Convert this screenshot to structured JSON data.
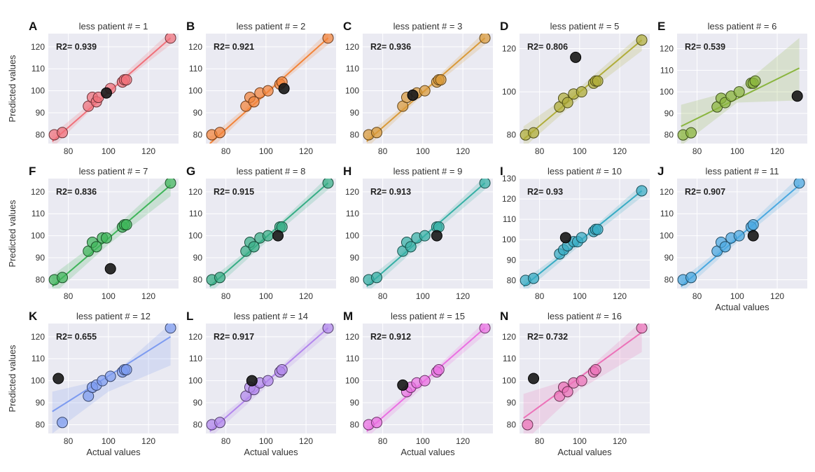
{
  "figure": {
    "x_axis_label": "Actual values",
    "y_axis_label": "Predicted values",
    "r2_prefix": "R2= ",
    "held_out_color": "#1c1c1c"
  },
  "chart_data": [
    {
      "type": "scatter",
      "letter": "A",
      "title": "less patient # = 1",
      "r2": "0.939",
      "color": "#f0707a",
      "xlim": [
        70,
        135
      ],
      "ylim": [
        76,
        126
      ],
      "xticks": [
        80,
        100,
        120
      ],
      "yticks": [
        80,
        90,
        100,
        110,
        120
      ],
      "fit": [
        [
          72,
          77
        ],
        [
          131,
          124
        ]
      ],
      "band": [
        [
          72,
          74,
          80
        ],
        [
          100,
          99,
          101
        ],
        [
          131,
          121,
          127
        ]
      ],
      "held_out": [
        [
          99,
          99
        ]
      ],
      "x": [
        73,
        77,
        90,
        92,
        94,
        95,
        101,
        107,
        108,
        109,
        131
      ],
      "y": [
        80,
        81,
        93,
        97,
        95,
        97,
        101,
        104,
        105,
        105,
        124
      ],
      "show_ylabel": true,
      "show_xlabel": false
    },
    {
      "type": "scatter",
      "letter": "B",
      "title": "less patient # = 2",
      "r2": "0.921",
      "color": "#f2843a",
      "xlim": [
        70,
        135
      ],
      "ylim": [
        76,
        126
      ],
      "xticks": [
        80,
        100,
        120
      ],
      "yticks": [
        80,
        90,
        100,
        110,
        120
      ],
      "fit": [
        [
          72,
          76
        ],
        [
          131,
          124
        ]
      ],
      "band": [
        [
          72,
          73,
          79
        ],
        [
          100,
          98,
          100
        ],
        [
          131,
          121,
          127
        ]
      ],
      "held_out": [
        [
          109,
          101
        ]
      ],
      "x": [
        73,
        77,
        90,
        92,
        94,
        97,
        101,
        107,
        108,
        131
      ],
      "y": [
        80,
        81,
        93,
        97,
        95,
        99,
        100,
        103,
        104,
        124
      ],
      "show_ylabel": false,
      "show_xlabel": false
    },
    {
      "type": "scatter",
      "letter": "C",
      "title": "less patient # = 3",
      "r2": "0.936",
      "color": "#d99a3a",
      "xlim": [
        70,
        135
      ],
      "ylim": [
        76,
        126
      ],
      "xticks": [
        80,
        100,
        120
      ],
      "yticks": [
        80,
        90,
        100,
        110,
        120
      ],
      "fit": [
        [
          72,
          77
        ],
        [
          131,
          124
        ]
      ],
      "band": [
        [
          72,
          74,
          80
        ],
        [
          100,
          98,
          100
        ],
        [
          131,
          121,
          127
        ]
      ],
      "held_out": [
        [
          95,
          98
        ]
      ],
      "x": [
        73,
        77,
        90,
        92,
        97,
        101,
        107,
        108,
        109,
        131
      ],
      "y": [
        80,
        81,
        93,
        97,
        99,
        100,
        104,
        105,
        105,
        124
      ],
      "show_ylabel": false,
      "show_xlabel": false
    },
    {
      "type": "scatter",
      "letter": "D",
      "title": "less patient # = 5",
      "r2": "0.806",
      "color": "#b0ad3a",
      "xlim": [
        70,
        135
      ],
      "ylim": [
        76,
        127
      ],
      "xticks": [
        80,
        100,
        120
      ],
      "yticks": [
        80,
        100,
        120
      ],
      "fit": [
        [
          72,
          78
        ],
        [
          131,
          124
        ]
      ],
      "band": [
        [
          72,
          74,
          84
        ],
        [
          100,
          97,
          102
        ],
        [
          131,
          119,
          127
        ]
      ],
      "held_out": [
        [
          98,
          116
        ]
      ],
      "x": [
        73,
        77,
        90,
        92,
        94,
        97,
        101,
        107,
        108,
        109,
        131
      ],
      "y": [
        80,
        81,
        93,
        97,
        95,
        99,
        100,
        104,
        105,
        105,
        124
      ],
      "show_ylabel": false,
      "show_xlabel": false
    },
    {
      "type": "scatter",
      "letter": "E",
      "title": "less patient # = 6",
      "r2": "0.539",
      "color": "#8ab53f",
      "xlim": [
        70,
        135
      ],
      "ylim": [
        76,
        127
      ],
      "xticks": [
        80,
        100,
        120
      ],
      "yticks": [
        80,
        90,
        100,
        110,
        120
      ],
      "fit": [
        [
          72,
          84
        ],
        [
          131,
          111
        ]
      ],
      "band": [
        [
          72,
          75,
          94
        ],
        [
          100,
          95,
          101
        ],
        [
          131,
          96,
          125
        ]
      ],
      "held_out": [
        [
          130,
          98
        ]
      ],
      "x": [
        73,
        77,
        90,
        92,
        94,
        97,
        101,
        107,
        108,
        109
      ],
      "y": [
        80,
        81,
        93,
        97,
        95,
        98,
        100,
        104,
        104,
        105
      ],
      "show_ylabel": false,
      "show_xlabel": false
    },
    {
      "type": "scatter",
      "letter": "F",
      "title": "less patient # = 7",
      "r2": "0.836",
      "color": "#3fb55a",
      "xlim": [
        70,
        135
      ],
      "ylim": [
        76,
        126
      ],
      "xticks": [
        80,
        100,
        120
      ],
      "yticks": [
        80,
        90,
        100,
        110,
        120
      ],
      "fit": [
        [
          72,
          77
        ],
        [
          131,
          123
        ]
      ],
      "band": [
        [
          72,
          73,
          82
        ],
        [
          100,
          96,
          101
        ],
        [
          131,
          118,
          127
        ]
      ],
      "held_out": [
        [
          101,
          85
        ]
      ],
      "x": [
        73,
        77,
        90,
        92,
        94,
        97,
        99,
        107,
        108,
        109,
        131
      ],
      "y": [
        80,
        81,
        93,
        97,
        95,
        99,
        99,
        104,
        105,
        105,
        124
      ],
      "show_ylabel": true,
      "show_xlabel": false
    },
    {
      "type": "scatter",
      "letter": "G",
      "title": "less patient # = 8",
      "r2": "0.915",
      "color": "#36ad85",
      "xlim": [
        70,
        135
      ],
      "ylim": [
        76,
        126
      ],
      "xticks": [
        80,
        100,
        120
      ],
      "yticks": [
        80,
        90,
        100,
        110,
        120
      ],
      "fit": [
        [
          72,
          77
        ],
        [
          131,
          124
        ]
      ],
      "band": [
        [
          72,
          74,
          80
        ],
        [
          100,
          97,
          100
        ],
        [
          131,
          121,
          127
        ]
      ],
      "held_out": [
        [
          106,
          100
        ]
      ],
      "x": [
        73,
        77,
        90,
        92,
        94,
        97,
        101,
        107,
        108,
        131
      ],
      "y": [
        80,
        81,
        93,
        97,
        95,
        99,
        100,
        104,
        104,
        124
      ],
      "show_ylabel": false,
      "show_xlabel": false
    },
    {
      "type": "scatter",
      "letter": "H",
      "title": "less patient # = 9",
      "r2": "0.913",
      "color": "#36b0a5",
      "xlim": [
        70,
        135
      ],
      "ylim": [
        76,
        126
      ],
      "xticks": [
        80,
        100,
        120
      ],
      "yticks": [
        80,
        90,
        100,
        110,
        120
      ],
      "fit": [
        [
          72,
          77
        ],
        [
          131,
          124
        ]
      ],
      "band": [
        [
          72,
          74,
          80
        ],
        [
          100,
          97,
          100
        ],
        [
          131,
          121,
          127
        ]
      ],
      "held_out": [
        [
          107,
          100
        ]
      ],
      "x": [
        73,
        77,
        90,
        92,
        94,
        97,
        101,
        107,
        108,
        131
      ],
      "y": [
        80,
        81,
        93,
        97,
        95,
        99,
        100,
        104,
        104,
        124
      ],
      "show_ylabel": false,
      "show_xlabel": false
    },
    {
      "type": "scatter",
      "letter": "I",
      "title": "less patient # = 10",
      "r2": "0.93",
      "color": "#38acc4",
      "xlim": [
        70,
        135
      ],
      "ylim": [
        76,
        130
      ],
      "xticks": [
        80,
        100,
        120
      ],
      "yticks": [
        80,
        90,
        100,
        110,
        120,
        130
      ],
      "fit": [
        [
          72,
          77
        ],
        [
          131,
          124
        ]
      ],
      "band": [
        [
          72,
          74,
          80
        ],
        [
          100,
          97,
          100
        ],
        [
          131,
          121,
          127
        ]
      ],
      "held_out": [
        [
          93,
          101
        ]
      ],
      "x": [
        73,
        77,
        90,
        92,
        94,
        97,
        99,
        101,
        107,
        108,
        109,
        131
      ],
      "y": [
        80,
        81,
        93,
        95,
        97,
        99,
        99,
        101,
        104,
        105,
        105,
        124
      ],
      "show_ylabel": false,
      "show_xlabel": false
    },
    {
      "type": "scatter",
      "letter": "J",
      "title": "less patient # = 11",
      "r2": "0.907",
      "color": "#4aa8e0",
      "xlim": [
        70,
        135
      ],
      "ylim": [
        76,
        126
      ],
      "xticks": [
        80,
        100,
        120
      ],
      "yticks": [
        80,
        90,
        100,
        110,
        120
      ],
      "fit": [
        [
          72,
          77
        ],
        [
          131,
          123
        ]
      ],
      "band": [
        [
          72,
          74,
          80
        ],
        [
          100,
          97,
          100
        ],
        [
          131,
          120,
          127
        ]
      ],
      "held_out": [
        [
          108,
          100
        ]
      ],
      "x": [
        73,
        77,
        90,
        92,
        94,
        97,
        101,
        107,
        108,
        131
      ],
      "y": [
        80,
        81,
        93,
        97,
        95,
        99,
        100,
        104,
        105,
        124
      ],
      "show_ylabel": false,
      "show_xlabel": true
    },
    {
      "type": "scatter",
      "letter": "K",
      "title": "less patient # = 12",
      "r2": "0.655",
      "color": "#7d9bf0",
      "xlim": [
        70,
        135
      ],
      "ylim": [
        76,
        126
      ],
      "xticks": [
        80,
        100,
        120
      ],
      "yticks": [
        80,
        90,
        100,
        110,
        120
      ],
      "fit": [
        [
          72,
          86
        ],
        [
          131,
          120
        ]
      ],
      "band": [
        [
          72,
          76,
          95
        ],
        [
          100,
          95,
          101
        ],
        [
          131,
          107,
          126
        ]
      ],
      "held_out": [
        [
          75,
          101
        ]
      ],
      "x": [
        77,
        90,
        92,
        94,
        97,
        101,
        107,
        108,
        109,
        131
      ],
      "y": [
        81,
        93,
        97,
        98,
        100,
        102,
        104,
        105,
        105,
        124
      ],
      "show_ylabel": true,
      "show_xlabel": true
    },
    {
      "type": "scatter",
      "letter": "L",
      "title": "less patient # = 14",
      "r2": "0.917",
      "color": "#b286ec",
      "xlim": [
        70,
        135
      ],
      "ylim": [
        76,
        126
      ],
      "xticks": [
        80,
        100,
        120
      ],
      "yticks": [
        80,
        90,
        100,
        110,
        120
      ],
      "fit": [
        [
          72,
          77
        ],
        [
          131,
          124
        ]
      ],
      "band": [
        [
          72,
          74,
          80
        ],
        [
          100,
          97,
          100
        ],
        [
          131,
          121,
          127
        ]
      ],
      "held_out": [
        [
          93,
          100
        ]
      ],
      "x": [
        73,
        77,
        90,
        92,
        94,
        97,
        101,
        107,
        108,
        131
      ],
      "y": [
        80,
        81,
        93,
        97,
        96,
        99,
        100,
        104,
        105,
        124
      ],
      "show_ylabel": false,
      "show_xlabel": true
    },
    {
      "type": "scatter",
      "letter": "M",
      "title": "less patient # = 15",
      "r2": "0.912",
      "color": "#ea70e2",
      "xlim": [
        70,
        135
      ],
      "ylim": [
        76,
        126
      ],
      "xticks": [
        80,
        100,
        120
      ],
      "yticks": [
        80,
        90,
        100,
        110,
        120
      ],
      "fit": [
        [
          72,
          77
        ],
        [
          131,
          124
        ]
      ],
      "band": [
        [
          72,
          74,
          80
        ],
        [
          100,
          97,
          100
        ],
        [
          131,
          121,
          127
        ]
      ],
      "held_out": [
        [
          90,
          98
        ]
      ],
      "x": [
        73,
        77,
        92,
        94,
        97,
        101,
        107,
        108,
        131
      ],
      "y": [
        80,
        81,
        95,
        97,
        99,
        100,
        104,
        105,
        124
      ],
      "show_ylabel": false,
      "show_xlabel": true
    },
    {
      "type": "scatter",
      "letter": "N",
      "title": "less patient # = 16",
      "r2": "0.732",
      "color": "#ec72b8",
      "xlim": [
        70,
        135
      ],
      "ylim": [
        76,
        126
      ],
      "xticks": [
        80,
        100,
        120
      ],
      "yticks": [
        80,
        90,
        100,
        110,
        120
      ],
      "fit": [
        [
          72,
          83
        ],
        [
          131,
          122
        ]
      ],
      "band": [
        [
          72,
          72,
          94
        ],
        [
          100,
          96,
          102
        ],
        [
          131,
          113,
          127
        ]
      ],
      "held_out": [
        [
          77,
          101
        ]
      ],
      "x": [
        74,
        90,
        92,
        94,
        97,
        101,
        107,
        108,
        131
      ],
      "y": [
        80,
        93,
        97,
        95,
        99,
        100,
        104,
        105,
        124
      ],
      "show_ylabel": false,
      "show_xlabel": true
    }
  ]
}
